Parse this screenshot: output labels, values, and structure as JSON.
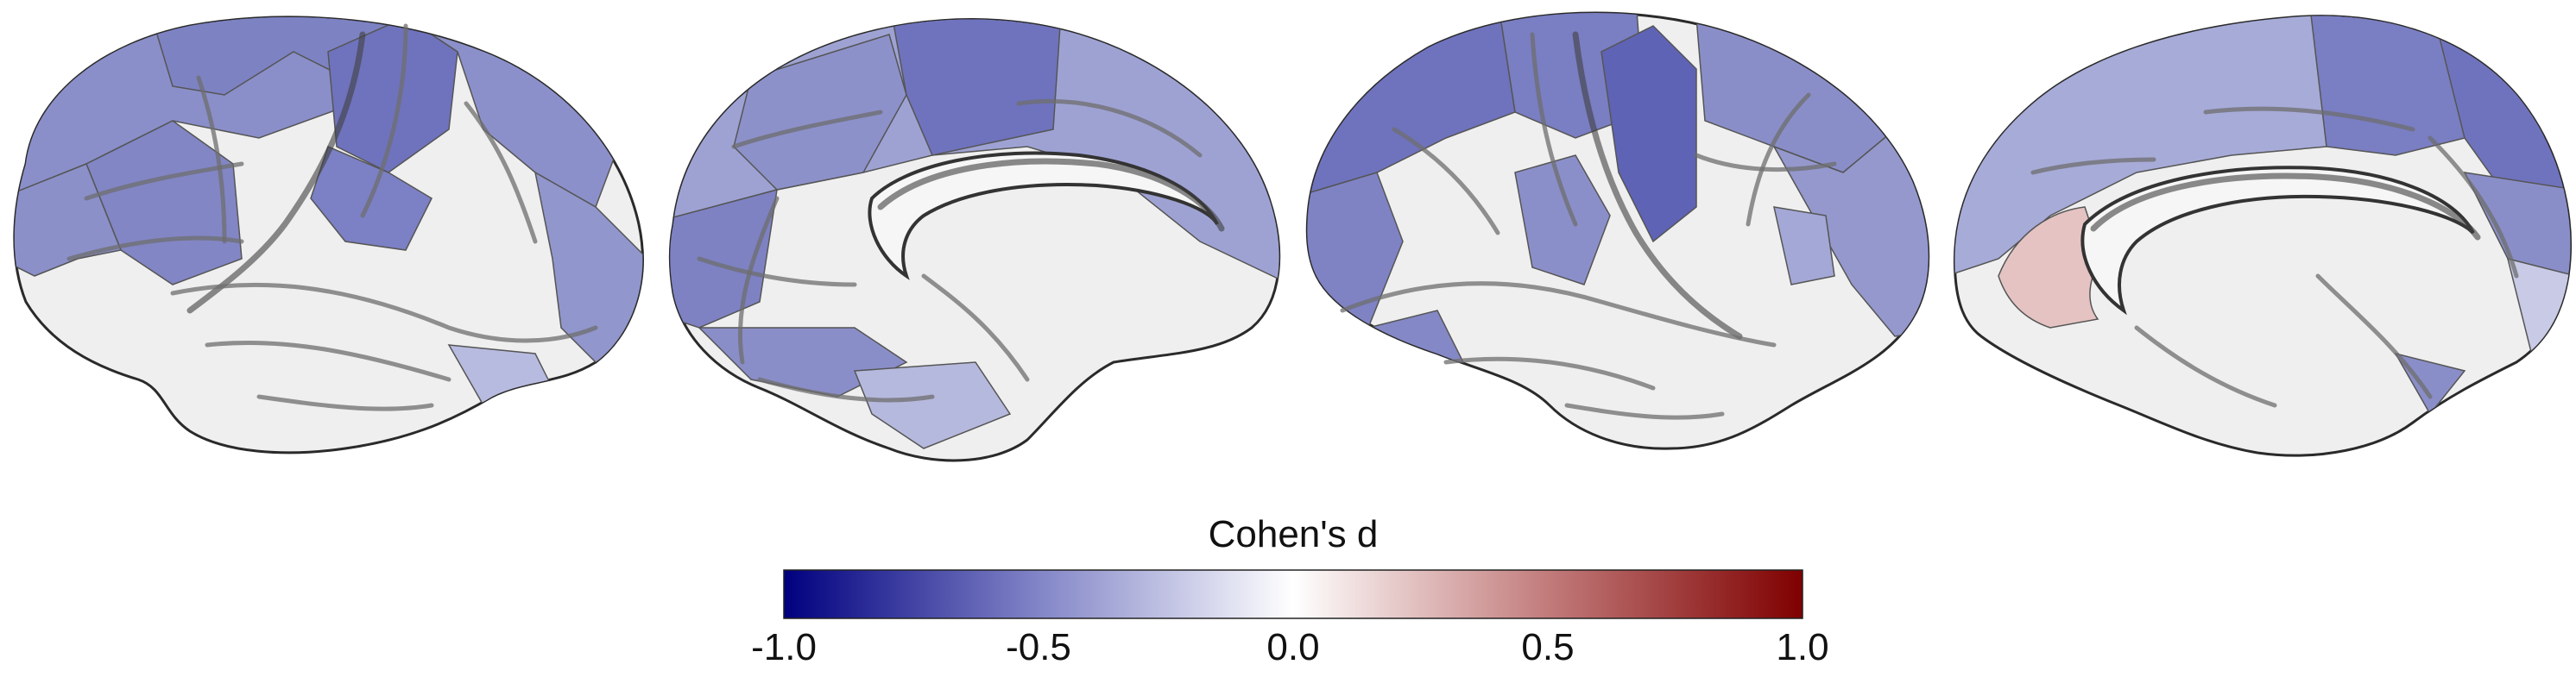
{
  "colorbar": {
    "title": "Cohen's d",
    "min": -1.0,
    "max": 1.0,
    "ticks": [
      {
        "value": -1.0,
        "label": "-1.0"
      },
      {
        "value": -0.5,
        "label": "-0.5"
      },
      {
        "value": 0.0,
        "label": "0.0"
      },
      {
        "value": 0.5,
        "label": "0.5"
      },
      {
        "value": 1.0,
        "label": "1.0"
      }
    ],
    "colors": {
      "negative": "#00007f",
      "neutral": "#ffffff",
      "positive": "#7f0000"
    }
  },
  "views": [
    {
      "name": "left-lateral",
      "hemisphere": "left",
      "aspect": "lateral"
    },
    {
      "name": "left-medial",
      "hemisphere": "left",
      "aspect": "medial"
    },
    {
      "name": "right-lateral",
      "hemisphere": "right",
      "aspect": "lateral"
    },
    {
      "name": "right-medial",
      "hemisphere": "right",
      "aspect": "medial"
    }
  ]
}
